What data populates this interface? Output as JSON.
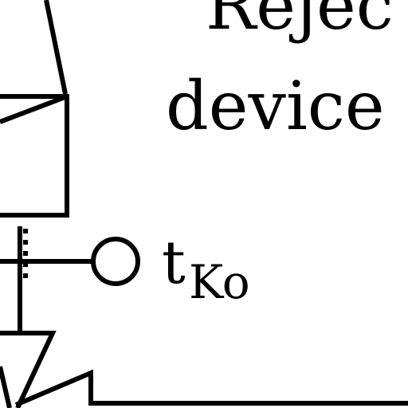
{
  "labels": {
    "title_line1": "Rejec",
    "title_line2": "device",
    "terminal_main": "t",
    "terminal_sub": "Ko"
  }
}
